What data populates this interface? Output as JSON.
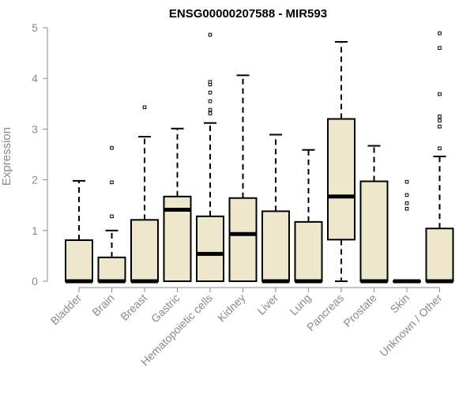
{
  "chart_data": {
    "type": "box",
    "title": "ENSG00000207588 - MIR593",
    "xlabel": "",
    "ylabel": "Expression",
    "ylim": [
      0,
      5
    ],
    "yticks": [
      0,
      1,
      2,
      3,
      4,
      5
    ],
    "box_fill": "#efe7cc",
    "categories": [
      "Bladder",
      "Brain",
      "Breast",
      "Gastric",
      "Hematopoietic cells",
      "Kidney",
      "Liver",
      "Lung",
      "Pancreas",
      "Prostate",
      "Skin",
      "Unknown / Other"
    ],
    "boxes": [
      {
        "category": "Bladder",
        "whisker_low": 0,
        "q1": 0,
        "median": 0,
        "q3": 0.81,
        "whisker_high": 1.98,
        "outliers": []
      },
      {
        "category": "Brain",
        "whisker_low": 0,
        "q1": 0,
        "median": 0,
        "q3": 0.47,
        "whisker_high": 1.0,
        "outliers": [
          1.28,
          1.95,
          2.63
        ]
      },
      {
        "category": "Breast",
        "whisker_low": 0,
        "q1": 0,
        "median": 0,
        "q3": 1.21,
        "whisker_high": 2.85,
        "outliers": [
          3.43
        ]
      },
      {
        "category": "Gastric",
        "whisker_low": 0,
        "q1": 0,
        "median": 1.41,
        "q3": 1.67,
        "whisker_high": 3.01,
        "outliers": []
      },
      {
        "category": "Hematopoietic cells",
        "whisker_low": 0,
        "q1": 0,
        "median": 0.54,
        "q3": 1.28,
        "whisker_high": 3.12,
        "outliers": [
          3.31,
          3.38,
          3.55,
          3.72,
          3.88,
          3.93,
          4.86
        ]
      },
      {
        "category": "Kidney",
        "whisker_low": 0,
        "q1": 0,
        "median": 0.93,
        "q3": 1.64,
        "whisker_high": 4.06,
        "outliers": []
      },
      {
        "category": "Liver",
        "whisker_low": 0,
        "q1": 0,
        "median": 0,
        "q3": 1.38,
        "whisker_high": 2.89,
        "outliers": []
      },
      {
        "category": "Lung",
        "whisker_low": 0,
        "q1": 0,
        "median": 0,
        "q3": 1.17,
        "whisker_high": 2.59,
        "outliers": []
      },
      {
        "category": "Pancreas",
        "whisker_low": 0,
        "q1": 0.82,
        "median": 1.67,
        "q3": 3.2,
        "whisker_high": 4.72,
        "outliers": []
      },
      {
        "category": "Prostate",
        "whisker_low": 0,
        "q1": 0,
        "median": 0,
        "q3": 1.97,
        "whisker_high": 2.67,
        "outliers": []
      },
      {
        "category": "Skin",
        "whisker_low": 0,
        "q1": 0,
        "median": 0,
        "q3": 0,
        "whisker_high": 0,
        "outliers": [
          1.43,
          1.54,
          1.7,
          1.96
        ]
      },
      {
        "category": "Unknown / Other",
        "whisker_low": 0,
        "q1": 0,
        "median": 0,
        "q3": 1.04,
        "whisker_high": 2.46,
        "outliers": [
          2.62,
          3.05,
          3.17,
          3.25,
          3.69,
          4.6,
          4.89
        ]
      }
    ]
  }
}
